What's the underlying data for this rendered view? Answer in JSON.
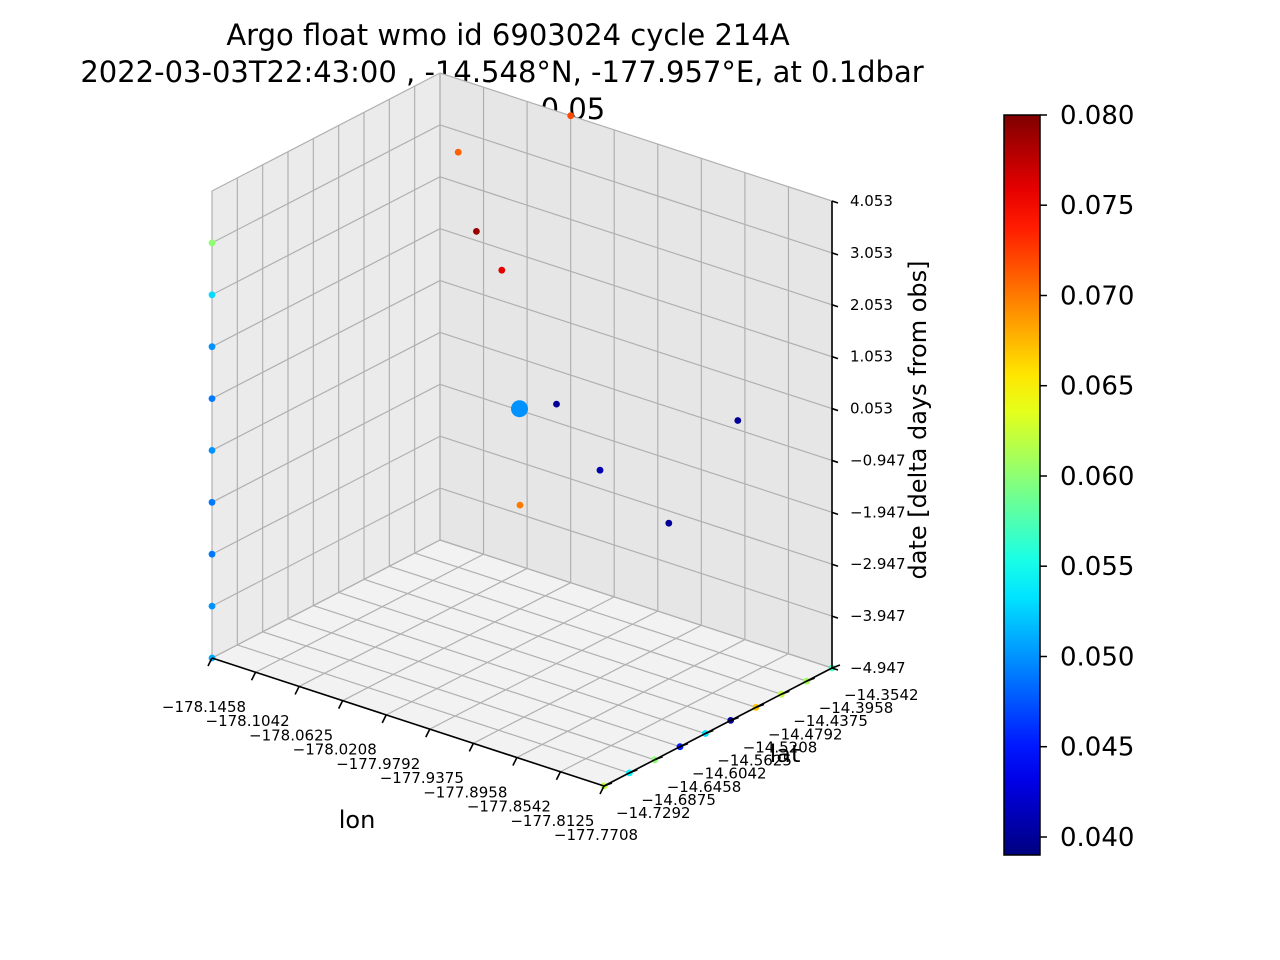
{
  "chart_data": {
    "type": "scatter",
    "title_lines": [
      "Argo float wmo id 6903024 cycle 214A",
      "2022-03-03T22:43:00 , -14.548°N, -177.957°E, at 0.1dbar",
      "value = 0.05"
    ],
    "xlabel": "lon",
    "ylabel": "lat",
    "zlabel": "date [delta days from obs]",
    "x_ticks": [
      "−178.1458",
      "−178.1042",
      "−178.0625",
      "−178.0208",
      "−177.9792",
      "−177.9375",
      "−177.8958",
      "−177.8542",
      "−177.8125",
      "−177.7708"
    ],
    "y_ticks": [
      "−14.7292",
      "−14.6875",
      "−14.6458",
      "−14.6042",
      "−14.5625",
      "−14.5208",
      "−14.4792",
      "−14.4375",
      "−14.3958",
      "−14.3542"
    ],
    "z_ticks": [
      "−4.947",
      "−3.947",
      "−2.947",
      "−1.947",
      "−0.947",
      "0.053",
      "1.053",
      "2.053",
      "3.053",
      "4.053"
    ],
    "xlim": [
      -178.1458,
      -177.7708
    ],
    "ylim": [
      -14.7292,
      -14.3542
    ],
    "zlim": [
      -4.947,
      4.053
    ],
    "colorbar": {
      "colormap": "jet",
      "vmin": 0.039,
      "vmax": 0.08,
      "ticks": [
        "0.040",
        "0.045",
        "0.050",
        "0.055",
        "0.060",
        "0.065",
        "0.070",
        "0.075",
        "0.080"
      ],
      "tick_values": [
        0.04,
        0.045,
        0.05,
        0.055,
        0.06,
        0.065,
        0.07,
        0.075,
        0.08
      ]
    },
    "observation": {
      "lon": -177.957,
      "lat": -14.548,
      "date": 0.0,
      "value": 0.05
    },
    "grid": true,
    "points": [
      {
        "lon": -178.1458,
        "lat": -14.7292,
        "date": -4.947,
        "value": 0.051
      },
      {
        "lon": -178.1458,
        "lat": -14.7292,
        "date": -3.947,
        "value": 0.05
      },
      {
        "lon": -178.1458,
        "lat": -14.7292,
        "date": -2.947,
        "value": 0.049
      },
      {
        "lon": -178.1458,
        "lat": -14.7292,
        "date": -1.947,
        "value": 0.049
      },
      {
        "lon": -178.1458,
        "lat": -14.7292,
        "date": -0.947,
        "value": 0.05
      },
      {
        "lon": -178.1458,
        "lat": -14.7292,
        "date": 0.053,
        "value": 0.049
      },
      {
        "lon": -178.1458,
        "lat": -14.7292,
        "date": 1.053,
        "value": 0.05
      },
      {
        "lon": -178.1458,
        "lat": -14.7292,
        "date": 2.053,
        "value": 0.053
      },
      {
        "lon": -178.1458,
        "lat": -14.7292,
        "date": 3.053,
        "value": 0.06
      },
      {
        "lon": -177.7708,
        "lat": -14.7292,
        "date": -4.947,
        "value": 0.062
      },
      {
        "lon": -177.7708,
        "lat": -14.6875,
        "date": -4.947,
        "value": 0.054
      },
      {
        "lon": -177.7708,
        "lat": -14.6458,
        "date": -4.947,
        "value": 0.06
      },
      {
        "lon": -177.7708,
        "lat": -14.6042,
        "date": -4.947,
        "value": 0.045
      },
      {
        "lon": -177.7708,
        "lat": -14.5625,
        "date": -4.947,
        "value": 0.053
      },
      {
        "lon": -177.7708,
        "lat": -14.5208,
        "date": -4.947,
        "value": 0.04
      },
      {
        "lon": -177.7708,
        "lat": -14.4792,
        "date": -4.947,
        "value": 0.067
      },
      {
        "lon": -177.7708,
        "lat": -14.4375,
        "date": -4.947,
        "value": 0.062
      },
      {
        "lon": -177.7708,
        "lat": -14.3958,
        "date": -4.947,
        "value": 0.061
      },
      {
        "lon": -177.7708,
        "lat": -14.3542,
        "date": -4.947,
        "value": 0.057
      },
      {
        "lon": -177.9375,
        "lat": -14.5208,
        "date": 0.053,
        "value": 0.04
      },
      {
        "lon": -177.8958,
        "lat": -14.5208,
        "date": -0.947,
        "value": 0.041
      },
      {
        "lon": -177.8542,
        "lat": -14.4792,
        "date": -1.947,
        "value": 0.04
      },
      {
        "lon": -177.8125,
        "lat": -14.4375,
        "date": 0.053,
        "value": 0.04
      },
      {
        "lon": -178.0625,
        "lat": -14.4375,
        "date": 2.053,
        "value": 0.079
      },
      {
        "lon": -178.0625,
        "lat": -14.3958,
        "date": 1.053,
        "value": 0.076
      },
      {
        "lon": -178.1042,
        "lat": -14.3958,
        "date": 3.053,
        "value": 0.071
      },
      {
        "lon": -178.0208,
        "lat": -14.3542,
        "date": 4.053,
        "value": 0.072
      },
      {
        "lon": -178.0208,
        "lat": -14.4375,
        "date": -2.947,
        "value": 0.07
      }
    ]
  },
  "colors": {
    "axis_line": "#000000",
    "grid": "#b0b0b0",
    "pane_floor": "#f2f2f2",
    "pane_wall_back": "#e6e6e6",
    "pane_wall_left": "#ebebeb"
  }
}
